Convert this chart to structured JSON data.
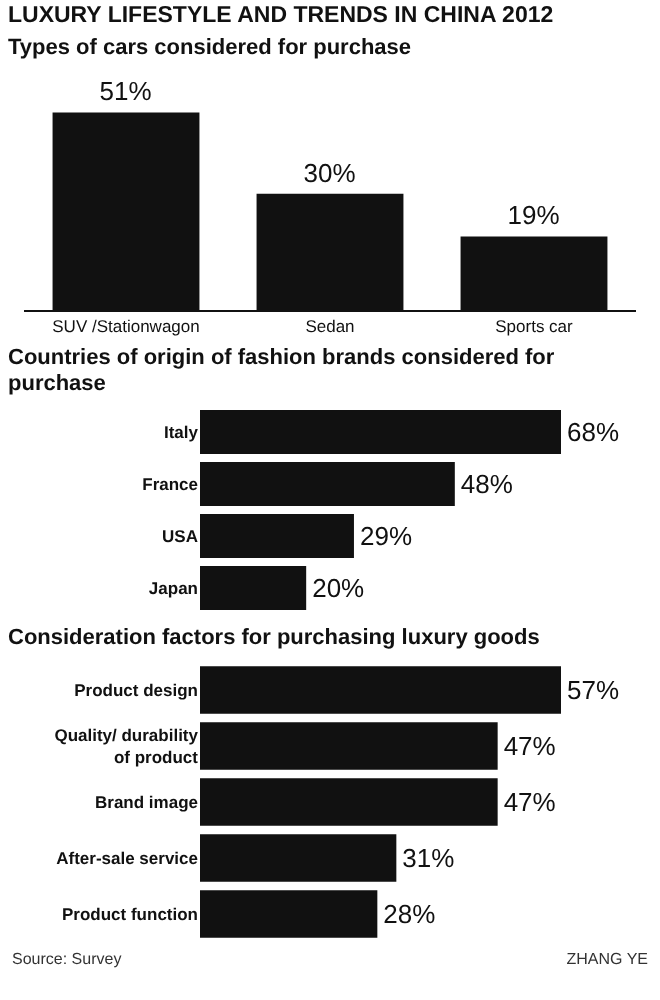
{
  "chart_data": [
    {
      "type": "bar",
      "title": "LUXURY LIFESTYLE AND TRENDS IN CHINA 2012",
      "subtitle": "Types of cars considered for purchase",
      "categories": [
        "SUV /Stationwagon",
        "Sedan",
        "Sports car"
      ],
      "values": [
        51,
        30,
        19
      ],
      "value_labels": [
        "51%",
        "30%",
        "19%"
      ],
      "color": "#111111"
    },
    {
      "type": "bar",
      "orientation": "horizontal",
      "title": "Countries of origin of fashion brands considered for purchase",
      "categories": [
        "Italy",
        "France",
        "USA",
        "Japan"
      ],
      "values": [
        68,
        48,
        29,
        20
      ],
      "value_labels": [
        "68%",
        "48%",
        "29%",
        "20%"
      ],
      "color": "#111111"
    },
    {
      "type": "bar",
      "orientation": "horizontal",
      "title": "Consideration factors for purchasing luxury goods",
      "categories": [
        "Product design",
        "Quality/ durability of product",
        "Brand image",
        "After-sale service",
        "Product function"
      ],
      "values": [
        57,
        47,
        47,
        31,
        28
      ],
      "value_labels": [
        "57%",
        "47%",
        "47%",
        "31%",
        "28%"
      ],
      "color": "#111111",
      "annotations": [
        "Source: Survey",
        "ZHANG YE"
      ]
    }
  ]
}
